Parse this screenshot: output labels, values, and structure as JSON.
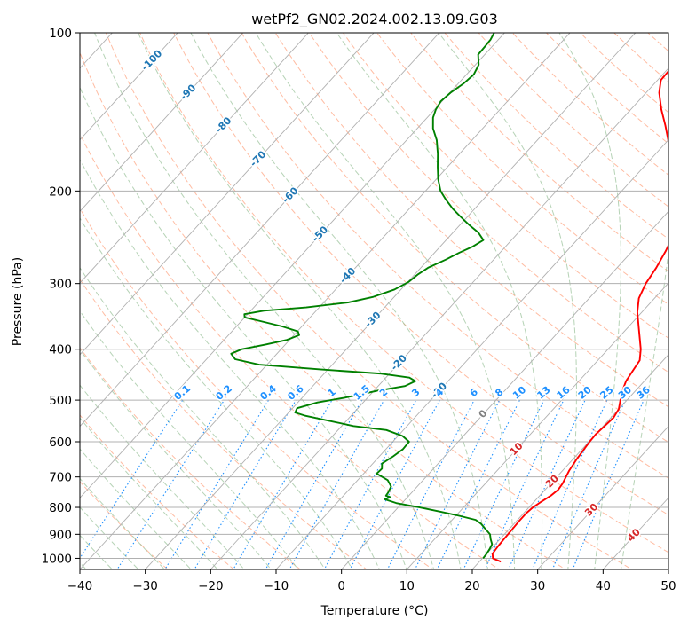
{
  "chart_data": {
    "type": "line",
    "title": "wetPf2_GN02.2024.002.13.09.G03",
    "xlabel": "Temperature (°C)",
    "ylabel": "Pressure (hPa)",
    "xlim": [
      -40,
      50
    ],
    "ylim": [
      1050,
      100
    ],
    "y_scale": "log",
    "x_ticks": [
      "−40",
      "−30",
      "−20",
      "−10",
      "0",
      "10",
      "20",
      "30",
      "40",
      "50"
    ],
    "x_tick_values": [
      -40,
      -30,
      -20,
      -10,
      0,
      10,
      20,
      30,
      40,
      50
    ],
    "y_ticks": [
      "100",
      "200",
      "300",
      "400",
      "500",
      "600",
      "700",
      "800",
      "900",
      "1000"
    ],
    "y_tick_values": [
      100,
      200,
      300,
      400,
      500,
      600,
      700,
      800,
      900,
      1000
    ],
    "grid": true,
    "colors": {
      "temperature": "#ff0000",
      "dewpoint": "#008000",
      "dry_adiabat": "#ffa07a",
      "moist_adiabat": "#8fbc8f",
      "mixing_ratio": "#1e90ff",
      "isotherm": "#808080",
      "isotherm_label_cold": "#1f77b4",
      "isotherm_label_zero": "#808080",
      "isotherm_label_warm": "#d62728",
      "mixing_ratio_label": "#1e90ff"
    },
    "series": [
      {
        "key": "temperature",
        "points": [
          [
            1015,
            23.3
          ],
          [
            1000,
            21.6
          ],
          [
            980,
            20.9
          ],
          [
            950,
            20.7
          ],
          [
            920,
            20.6
          ],
          [
            880,
            20.5
          ],
          [
            850,
            20.4
          ],
          [
            820,
            20.4
          ],
          [
            800,
            20.6
          ],
          [
            780,
            21.1
          ],
          [
            760,
            21.7
          ],
          [
            740,
            22.0
          ],
          [
            720,
            21.8
          ],
          [
            700,
            21.4
          ],
          [
            680,
            21.0
          ],
          [
            650,
            20.6
          ],
          [
            620,
            20.3
          ],
          [
            600,
            20.1
          ],
          [
            580,
            20.0
          ],
          [
            560,
            20.2
          ],
          [
            540,
            20.4
          ],
          [
            520,
            20.0
          ],
          [
            500,
            19.0
          ],
          [
            480,
            18.0
          ],
          [
            460,
            17.2
          ],
          [
            440,
            16.8
          ],
          [
            420,
            16.4
          ],
          [
            400,
            15.0
          ],
          [
            380,
            13.2
          ],
          [
            360,
            11.3
          ],
          [
            340,
            9.3
          ],
          [
            320,
            7.6
          ],
          [
            300,
            6.6
          ],
          [
            280,
            6.0
          ],
          [
            260,
            5.1
          ],
          [
            245,
            4.2
          ],
          [
            230,
            2.3
          ],
          [
            215,
            0.1
          ],
          [
            200,
            -2.3
          ],
          [
            185,
            -4.9
          ],
          [
            170,
            -7.7
          ],
          [
            160,
            -10.0
          ],
          [
            150,
            -12.5
          ],
          [
            140,
            -15.3
          ],
          [
            130,
            -18.0
          ],
          [
            123,
            -19.5
          ],
          [
            118,
            -19.6
          ],
          [
            113,
            -19.3
          ],
          [
            108,
            -19.0
          ],
          [
            104,
            -18.6
          ],
          [
            100,
            -18.3
          ]
        ]
      },
      {
        "key": "dewpoint",
        "points": [
          [
            1000,
            20.1
          ],
          [
            980,
            20.0
          ],
          [
            960,
            19.8
          ],
          [
            940,
            19.5
          ],
          [
            920,
            18.6
          ],
          [
            900,
            17.8
          ],
          [
            880,
            16.4
          ],
          [
            860,
            15.0
          ],
          [
            845,
            13.6
          ],
          [
            830,
            10.5
          ],
          [
            815,
            7.0
          ],
          [
            800,
            3.3
          ],
          [
            785,
            -0.9
          ],
          [
            772,
            -3.2
          ],
          [
            765,
            -2.6
          ],
          [
            760,
            -3.5
          ],
          [
            750,
            -3.6
          ],
          [
            730,
            -4.0
          ],
          [
            710,
            -5.4
          ],
          [
            690,
            -8.0
          ],
          [
            675,
            -7.9
          ],
          [
            660,
            -8.6
          ],
          [
            640,
            -7.9
          ],
          [
            620,
            -7.4
          ],
          [
            600,
            -7.5
          ],
          [
            585,
            -9.3
          ],
          [
            570,
            -12.6
          ],
          [
            560,
            -18.2
          ],
          [
            545,
            -23.5
          ],
          [
            535,
            -27.1
          ],
          [
            528,
            -29.0
          ],
          [
            518,
            -29.3
          ],
          [
            505,
            -27.0
          ],
          [
            495,
            -23.6
          ],
          [
            480,
            -19.5
          ],
          [
            470,
            -15.9
          ],
          [
            460,
            -15.0
          ],
          [
            453,
            -16.4
          ],
          [
            445,
            -21.5
          ],
          [
            437,
            -31.2
          ],
          [
            428,
            -41.2
          ],
          [
            418,
            -45.6
          ],
          [
            408,
            -47.0
          ],
          [
            400,
            -46.0
          ],
          [
            392,
            -43.0
          ],
          [
            384,
            -40.4
          ],
          [
            376,
            -39.2
          ],
          [
            370,
            -39.9
          ],
          [
            362,
            -43.0
          ],
          [
            354,
            -46.9
          ],
          [
            348,
            -50.0
          ],
          [
            343,
            -50.5
          ],
          [
            338,
            -48.0
          ],
          [
            333,
            -42.0
          ],
          [
            326,
            -36.3
          ],
          [
            318,
            -33.2
          ],
          [
            308,
            -31.0
          ],
          [
            298,
            -29.9
          ],
          [
            288,
            -29.5
          ],
          [
            280,
            -28.9
          ],
          [
            270,
            -27.3
          ],
          [
            262,
            -26.2
          ],
          [
            255,
            -25.0
          ],
          [
            248,
            -24.3
          ],
          [
            240,
            -26.1
          ],
          [
            232,
            -28.6
          ],
          [
            224,
            -31.0
          ],
          [
            216,
            -33.4
          ],
          [
            208,
            -35.6
          ],
          [
            200,
            -37.7
          ],
          [
            190,
            -39.7
          ],
          [
            180,
            -41.5
          ],
          [
            170,
            -43.3
          ],
          [
            160,
            -45.4
          ],
          [
            152,
            -47.6
          ],
          [
            145,
            -49.1
          ],
          [
            140,
            -49.8
          ],
          [
            135,
            -50.2
          ],
          [
            130,
            -49.9
          ],
          [
            125,
            -49.2
          ],
          [
            120,
            -48.9
          ],
          [
            115,
            -49.5
          ],
          [
            110,
            -51.0
          ],
          [
            106,
            -51.1
          ],
          [
            103,
            -51.2
          ],
          [
            100,
            -51.6
          ]
        ]
      }
    ],
    "isotherm_labels": [
      "-100",
      "-90",
      "-80",
      "-70",
      "-60",
      "-50",
      "-40",
      "-30",
      "-20",
      "-10",
      "0",
      "10",
      "20",
      "30",
      "40"
    ],
    "isotherm_label_values": [
      -100,
      -90,
      -80,
      -70,
      -60,
      -50,
      -40,
      -30,
      -20,
      -10,
      0,
      10,
      20,
      30,
      40
    ],
    "mixing_ratio_labels": [
      "0.1",
      "0.2",
      "0.4",
      "0.6",
      "1",
      "1.5",
      "2",
      "3",
      "4",
      "6",
      "8",
      "10",
      "13",
      "16",
      "20",
      "25",
      "30",
      "36"
    ],
    "mixing_ratio_values": [
      0.1,
      0.2,
      0.4,
      0.6,
      1,
      1.5,
      2,
      3,
      4,
      6,
      8,
      10,
      13,
      16,
      20,
      25,
      30,
      36
    ]
  }
}
